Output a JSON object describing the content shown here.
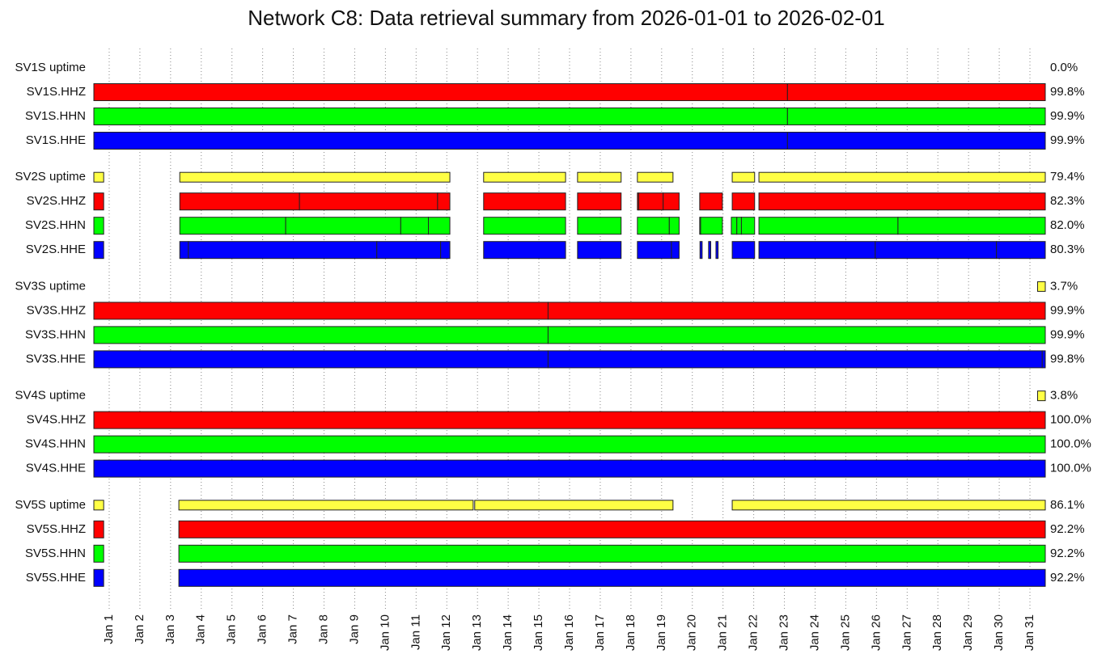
{
  "chart_data": {
    "type": "timeline",
    "title": "Network C8: Data retrieval summary from 2026-01-01 to 2026-02-01",
    "xlim": [
      0,
      31
    ],
    "xticks": [
      {
        "value": 0.5,
        "label": "Jan 1"
      },
      {
        "value": 1.5,
        "label": "Jan 2"
      },
      {
        "value": 2.5,
        "label": "Jan 3"
      },
      {
        "value": 3.5,
        "label": "Jan 4"
      },
      {
        "value": 4.5,
        "label": "Jan 5"
      },
      {
        "value": 5.5,
        "label": "Jan 6"
      },
      {
        "value": 6.5,
        "label": "Jan 7"
      },
      {
        "value": 7.5,
        "label": "Jan 8"
      },
      {
        "value": 8.5,
        "label": "Jan 9"
      },
      {
        "value": 9.5,
        "label": "Jan 10"
      },
      {
        "value": 10.5,
        "label": "Jan 11"
      },
      {
        "value": 11.5,
        "label": "Jan 12"
      },
      {
        "value": 12.5,
        "label": "Jan 13"
      },
      {
        "value": 13.5,
        "label": "Jan 14"
      },
      {
        "value": 14.5,
        "label": "Jan 15"
      },
      {
        "value": 15.5,
        "label": "Jan 16"
      },
      {
        "value": 16.5,
        "label": "Jan 17"
      },
      {
        "value": 17.5,
        "label": "Jan 18"
      },
      {
        "value": 18.5,
        "label": "Jan 19"
      },
      {
        "value": 19.5,
        "label": "Jan 20"
      },
      {
        "value": 20.5,
        "label": "Jan 21"
      },
      {
        "value": 21.5,
        "label": "Jan 22"
      },
      {
        "value": 22.5,
        "label": "Jan 23"
      },
      {
        "value": 23.5,
        "label": "Jan 24"
      },
      {
        "value": 24.5,
        "label": "Jan 25"
      },
      {
        "value": 25.5,
        "label": "Jan 26"
      },
      {
        "value": 26.5,
        "label": "Jan 27"
      },
      {
        "value": 27.5,
        "label": "Jan 28"
      },
      {
        "value": 28.5,
        "label": "Jan 29"
      },
      {
        "value": 29.5,
        "label": "Jan 30"
      },
      {
        "value": 30.5,
        "label": "Jan 31"
      }
    ],
    "grid": true,
    "series": [
      {
        "name": "SV1S uptime",
        "color": "#ffff44",
        "segments": [],
        "value": 0.0,
        "value_label": "0.0%"
      },
      {
        "name": "SV1S.HHZ",
        "color": "#ff0000",
        "segments": [
          [
            0,
            22.6
          ],
          [
            22.6,
            31
          ]
        ],
        "value": 99.8,
        "value_label": "99.8%"
      },
      {
        "name": "SV1S.HHN",
        "color": "#00ff00",
        "segments": [
          [
            0,
            22.6
          ],
          [
            22.6,
            31
          ]
        ],
        "value": 99.9,
        "value_label": "99.9%"
      },
      {
        "name": "SV1S.HHE",
        "color": "#0000ff",
        "segments": [
          [
            0,
            22.6
          ],
          [
            22.6,
            31
          ]
        ],
        "value": 99.9,
        "value_label": "99.9%"
      },
      {
        "name": "SV2S uptime",
        "color": "#ffff44",
        "segments": [
          [
            0,
            0.32
          ],
          [
            2.8,
            11.6
          ],
          [
            12.7,
            15.37
          ],
          [
            15.76,
            17.18
          ],
          [
            17.71,
            18.87
          ],
          [
            20.8,
            21.53
          ],
          [
            21.67,
            31
          ]
        ],
        "value": 79.4,
        "value_label": "79.4%"
      },
      {
        "name": "SV2S.HHZ",
        "color": "#ff0000",
        "segments": [
          [
            0,
            0.32
          ],
          [
            2.8,
            6.7
          ],
          [
            6.7,
            11.2
          ],
          [
            11.2,
            11.6
          ],
          [
            12.7,
            15.37
          ],
          [
            15.76,
            17.18
          ],
          [
            17.71,
            17.75
          ],
          [
            17.75,
            18.55
          ],
          [
            18.55,
            19.07
          ],
          [
            19.74,
            20.48
          ],
          [
            20.8,
            21.53
          ],
          [
            21.67,
            31
          ]
        ],
        "value": 82.3,
        "value_label": "82.3%"
      },
      {
        "name": "SV2S.HHN",
        "color": "#00ff00",
        "segments": [
          [
            0,
            0.32
          ],
          [
            2.8,
            6.25
          ],
          [
            6.25,
            10.0
          ],
          [
            10.0,
            10.9
          ],
          [
            10.9,
            11.6
          ],
          [
            12.7,
            15.37
          ],
          [
            15.76,
            17.18
          ],
          [
            17.71,
            18.75
          ],
          [
            18.75,
            19.07
          ],
          [
            19.74,
            19.77
          ],
          [
            19.77,
            20.48
          ],
          [
            20.77,
            20.95
          ],
          [
            20.95,
            21.1
          ],
          [
            21.1,
            21.53
          ],
          [
            21.67,
            26.2
          ],
          [
            26.2,
            31
          ]
        ],
        "value": 82.0,
        "value_label": "82.0%"
      },
      {
        "name": "SV2S.HHE",
        "color": "#0000ff",
        "segments": [
          [
            0,
            0.32
          ],
          [
            2.8,
            3.08
          ],
          [
            3.08,
            9.22
          ],
          [
            9.22,
            11.3
          ],
          [
            11.3,
            11.6
          ],
          [
            12.7,
            15.37
          ],
          [
            15.76,
            17.18
          ],
          [
            17.71,
            18.82
          ],
          [
            18.82,
            19.07
          ],
          [
            19.75,
            19.82
          ],
          [
            20.03,
            20.1
          ],
          [
            20.27,
            20.34
          ],
          [
            20.8,
            21.53
          ],
          [
            21.67,
            25.46
          ],
          [
            25.46,
            29.41
          ],
          [
            29.41,
            31
          ]
        ],
        "value": 80.3,
        "value_label": "80.3%"
      },
      {
        "name": "SV3S uptime",
        "color": "#ffff44",
        "segments": [
          [
            30.75,
            31
          ]
        ],
        "value": 3.7,
        "value_label": "3.7%"
      },
      {
        "name": "SV3S.HHZ",
        "color": "#ff0000",
        "segments": [
          [
            0,
            14.8
          ],
          [
            14.8,
            31
          ]
        ],
        "value": 99.9,
        "value_label": "99.9%"
      },
      {
        "name": "SV3S.HHN",
        "color": "#00ff00",
        "segments": [
          [
            0,
            14.8
          ],
          [
            14.8,
            31
          ]
        ],
        "value": 99.9,
        "value_label": "99.9%"
      },
      {
        "name": "SV3S.HHE",
        "color": "#0000ff",
        "segments": [
          [
            0,
            14.8
          ],
          [
            14.8,
            30.9
          ],
          [
            30.9,
            31
          ]
        ],
        "value": 99.8,
        "value_label": "99.8%"
      },
      {
        "name": "SV4S uptime",
        "color": "#ffff44",
        "segments": [
          [
            30.75,
            31
          ]
        ],
        "value": 3.8,
        "value_label": "3.8%"
      },
      {
        "name": "SV4S.HHZ",
        "color": "#ff0000",
        "segments": [
          [
            0,
            31
          ]
        ],
        "value": 100.0,
        "value_label": "100.0%"
      },
      {
        "name": "SV4S.HHN",
        "color": "#00ff00",
        "segments": [
          [
            0,
            31
          ]
        ],
        "value": 100.0,
        "value_label": "100.0%"
      },
      {
        "name": "SV4S.HHE",
        "color": "#0000ff",
        "segments": [
          [
            0,
            31
          ]
        ],
        "value": 100.0,
        "value_label": "100.0%"
      },
      {
        "name": "SV5S uptime",
        "color": "#ffff44",
        "segments": [
          [
            0,
            0.32
          ],
          [
            2.77,
            12.36
          ],
          [
            12.41,
            18.87
          ],
          [
            20.8,
            31
          ]
        ],
        "value": 86.1,
        "value_label": "86.1%"
      },
      {
        "name": "SV5S.HHZ",
        "color": "#ff0000",
        "segments": [
          [
            0,
            0.32
          ],
          [
            2.77,
            31
          ]
        ],
        "value": 92.2,
        "value_label": "92.2%"
      },
      {
        "name": "SV5S.HHN",
        "color": "#00ff00",
        "segments": [
          [
            0,
            0.32
          ],
          [
            2.77,
            31
          ]
        ],
        "value": 92.2,
        "value_label": "92.2%"
      },
      {
        "name": "SV5S.HHE",
        "color": "#0000ff",
        "segments": [
          [
            0,
            0.32
          ],
          [
            2.77,
            31
          ]
        ],
        "value": 92.2,
        "value_label": "92.2%"
      }
    ]
  }
}
